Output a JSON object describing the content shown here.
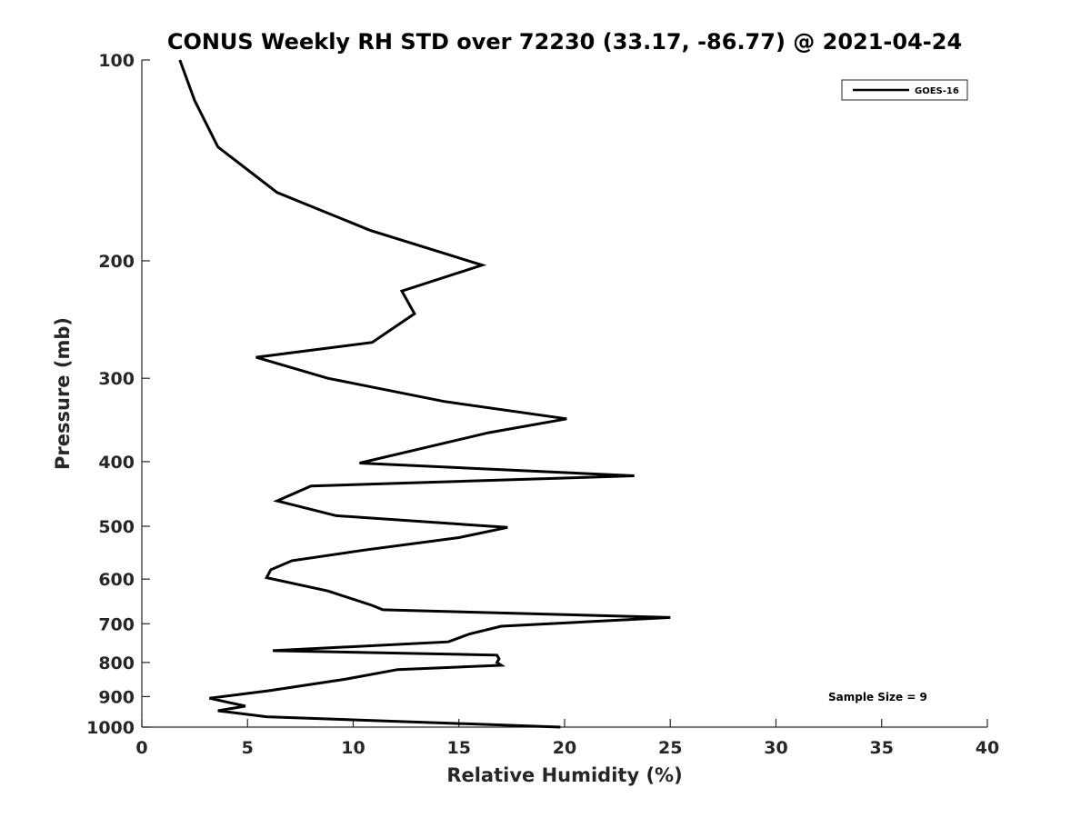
{
  "chart_data": {
    "type": "line",
    "title": "CONUS Weekly RH STD over 72230 (33.17, -86.77) @ 2021-04-24",
    "xlabel": "Relative Humidity (%)",
    "ylabel": "Pressure (mb)",
    "xlim": [
      0,
      40
    ],
    "ylim": [
      1000,
      100
    ],
    "yscale": "log",
    "xticks": [
      0,
      5,
      10,
      15,
      20,
      25,
      30,
      35,
      40
    ],
    "xtick_labels": [
      "0",
      "5",
      "10",
      "15",
      "20",
      "25",
      "30",
      "35",
      "40"
    ],
    "yticks": [
      100,
      200,
      300,
      400,
      500,
      600,
      700,
      800,
      900,
      1000
    ],
    "ytick_labels": [
      "100",
      "200",
      "300",
      "400",
      "500",
      "600",
      "700",
      "800",
      "900",
      "1000"
    ],
    "grid": false,
    "legend": {
      "location": "top-right",
      "entries": [
        "GOES-16"
      ]
    },
    "annotation": "Sample Size = 9",
    "series": [
      {
        "name": "GOES-16",
        "color": "#000000",
        "x": [
          1.8,
          2.5,
          3.6,
          6.4,
          10.8,
          16.1,
          12.3,
          12.9,
          10.9,
          5.4,
          8.8,
          14.3,
          20.1,
          16.4,
          10.3,
          23.3,
          8.0,
          6.4,
          9.2,
          17.3,
          15.0,
          10.5,
          7.1,
          6.1,
          5.9,
          8.8,
          10.9,
          11.4,
          25.0,
          17.0,
          15.5,
          14.5,
          6.2,
          16.8,
          16.9,
          16.8,
          17.0,
          12.1,
          9.6,
          6.0,
          3.2,
          4.9,
          3.6,
          5.9,
          19.8
        ],
        "y": [
          100,
          115,
          135,
          158,
          180,
          203,
          222,
          240,
          265,
          279,
          300,
          325,
          345,
          362,
          402,
          420,
          435,
          458,
          482,
          502,
          520,
          543,
          563,
          581,
          597,
          625,
          657,
          667,
          685,
          706,
          725,
          745,
          768,
          780,
          790,
          800,
          808,
          820,
          848,
          882,
          905,
          930,
          945,
          965,
          1000
        ]
      }
    ]
  }
}
